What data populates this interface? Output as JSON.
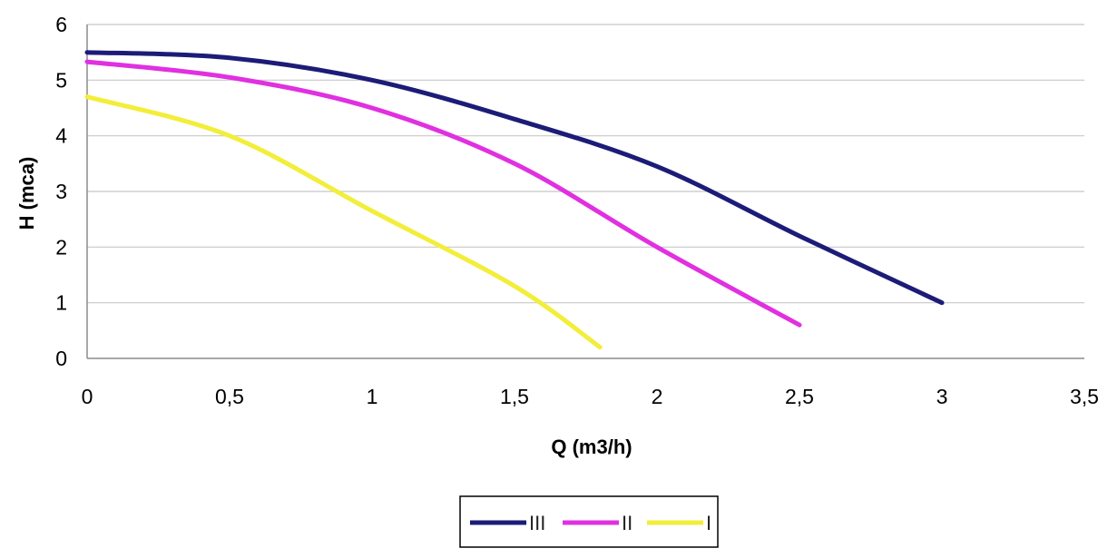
{
  "chart_data": {
    "type": "line",
    "title": "",
    "xlabel": "Q (m3/h)",
    "ylabel": "H (mca)",
    "xlim": [
      0,
      3.5
    ],
    "ylim": [
      0,
      6
    ],
    "x_ticks": [
      "0",
      "0,5",
      "1",
      "1,5",
      "2",
      "2,5",
      "3",
      "3,5"
    ],
    "y_ticks": [
      "0",
      "1",
      "2",
      "3",
      "4",
      "5",
      "6"
    ],
    "grid": "horizontal",
    "legend_position": "bottom",
    "series": [
      {
        "name": "III",
        "color": "#1c1c78",
        "points": [
          [
            0,
            5.5
          ],
          [
            0.5,
            5.4
          ],
          [
            1.0,
            5.0
          ],
          [
            1.5,
            4.3
          ],
          [
            2.0,
            3.45
          ],
          [
            2.5,
            2.2
          ],
          [
            3.0,
            1.0
          ]
        ]
      },
      {
        "name": "II",
        "color": "#e030e0",
        "points": [
          [
            0,
            5.33
          ],
          [
            0.5,
            5.05
          ],
          [
            1.0,
            4.5
          ],
          [
            1.5,
            3.5
          ],
          [
            2.0,
            2.0
          ],
          [
            2.5,
            0.6
          ]
        ]
      },
      {
        "name": "I",
        "color": "#f2ee3a",
        "points": [
          [
            0,
            4.7
          ],
          [
            0.5,
            4.0
          ],
          [
            1.0,
            2.65
          ],
          [
            1.5,
            1.3
          ],
          [
            1.8,
            0.2
          ]
        ]
      }
    ]
  }
}
